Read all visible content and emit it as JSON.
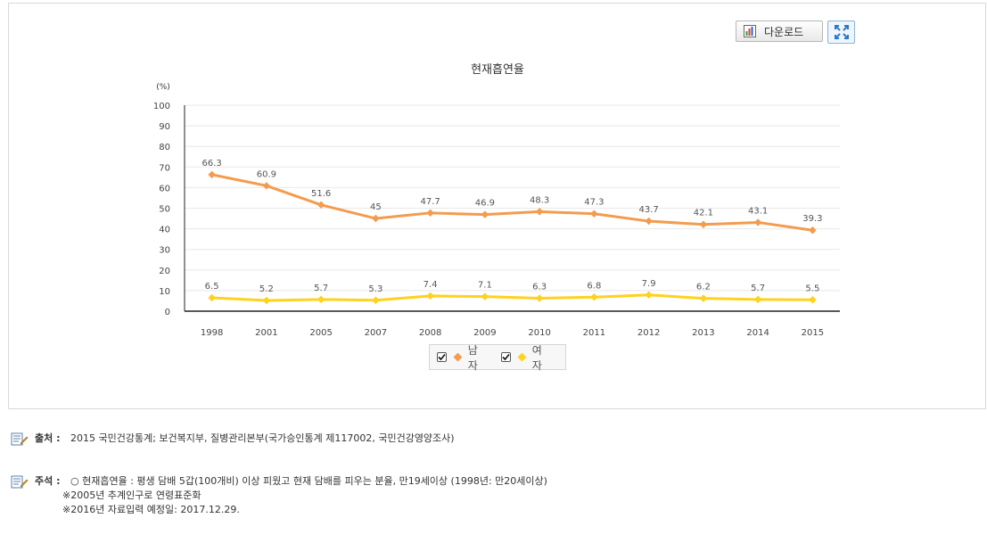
{
  "toolbar": {
    "download_label": "다운로드",
    "download_icon": "chart-bar-icon",
    "expand_icon": "fullscreen-expand-icon"
  },
  "colors": {
    "male": "#f39c4e",
    "female": "#ffd21e",
    "axis": "#222222",
    "grid": "#e8e8e8"
  },
  "chart_data": {
    "type": "line",
    "title": "현재흡연율",
    "ylabel": "(%)",
    "xlabel": "",
    "ylim": [
      0,
      100
    ],
    "yticks": [
      0,
      10,
      20,
      30,
      40,
      50,
      60,
      70,
      80,
      90,
      100
    ],
    "categories": [
      "1998",
      "2001",
      "2005",
      "2007",
      "2008",
      "2009",
      "2010",
      "2011",
      "2012",
      "2013",
      "2014",
      "2015"
    ],
    "series": [
      {
        "name": "남자",
        "values": [
          66.3,
          60.9,
          51.6,
          45,
          47.7,
          46.9,
          48.3,
          47.3,
          43.7,
          42.1,
          43.1,
          39.3
        ]
      },
      {
        "name": "여자",
        "values": [
          6.5,
          5.2,
          5.7,
          5.3,
          7.4,
          7.1,
          6.3,
          6.8,
          7.9,
          6.2,
          5.7,
          5.5
        ]
      }
    ],
    "legend": "bottom-center",
    "grid": true
  },
  "notes": {
    "source_label": "출처 :",
    "source_text": "2015 국민건강통계; 보건복지부, 질병관리본부(국가승인통계 제117002, 국민건강영양조사)",
    "remark_label": "주석 :",
    "remark_lines": [
      "○ 현재흡연율 : 평생 담배 5갑(100개비) 이상 피웠고 현재 담배를 피우는 분율, 만19세이상 (1998년: 만20세이상)",
      "※2005년 추계인구로 연령표준화",
      "※2016년 자료입력 예정일: 2017.12.29."
    ]
  }
}
